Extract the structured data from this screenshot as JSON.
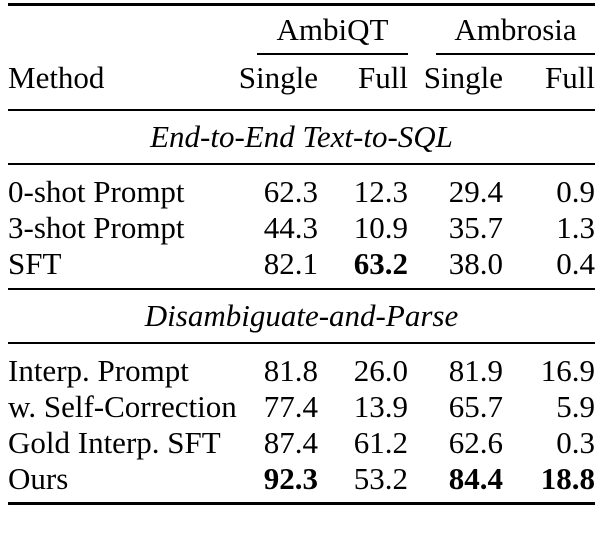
{
  "page": {
    "background_color": "#ffffff",
    "text_color": "#000000"
  },
  "table": {
    "column_groups": [
      "AmbiQT",
      "Ambrosia"
    ],
    "method_header": "Method",
    "sub_headers": [
      "Single",
      "Full",
      "Single",
      "Full"
    ],
    "sections": [
      {
        "title": "End-to-End Text-to-SQL",
        "rows": [
          {
            "method": "0-shot Prompt",
            "values": [
              "62.3",
              "12.3",
              "29.4",
              "0.9"
            ],
            "bold": [
              false,
              false,
              false,
              false
            ]
          },
          {
            "method": "3-shot Prompt",
            "values": [
              "44.3",
              "10.9",
              "35.7",
              "1.3"
            ],
            "bold": [
              false,
              false,
              false,
              false
            ]
          },
          {
            "method": "SFT",
            "values": [
              "82.1",
              "63.2",
              "38.0",
              "0.4"
            ],
            "bold": [
              false,
              true,
              false,
              false
            ]
          }
        ]
      },
      {
        "title": "Disambiguate-and-Parse",
        "rows": [
          {
            "method": "Interp. Prompt",
            "values": [
              "81.8",
              "26.0",
              "81.9",
              "16.9"
            ],
            "bold": [
              false,
              false,
              false,
              false
            ]
          },
          {
            "method": "w. Self-Correction",
            "values": [
              "77.4",
              "13.9",
              "65.7",
              "5.9"
            ],
            "bold": [
              false,
              false,
              false,
              false
            ]
          },
          {
            "method": "Gold Interp. SFT",
            "values": [
              "87.4",
              "61.2",
              "62.6",
              "0.3"
            ],
            "bold": [
              false,
              false,
              false,
              false
            ]
          },
          {
            "method": "Ours",
            "values": [
              "92.3",
              "53.2",
              "84.4",
              "18.8"
            ],
            "bold": [
              true,
              false,
              true,
              true
            ]
          }
        ]
      }
    ]
  }
}
